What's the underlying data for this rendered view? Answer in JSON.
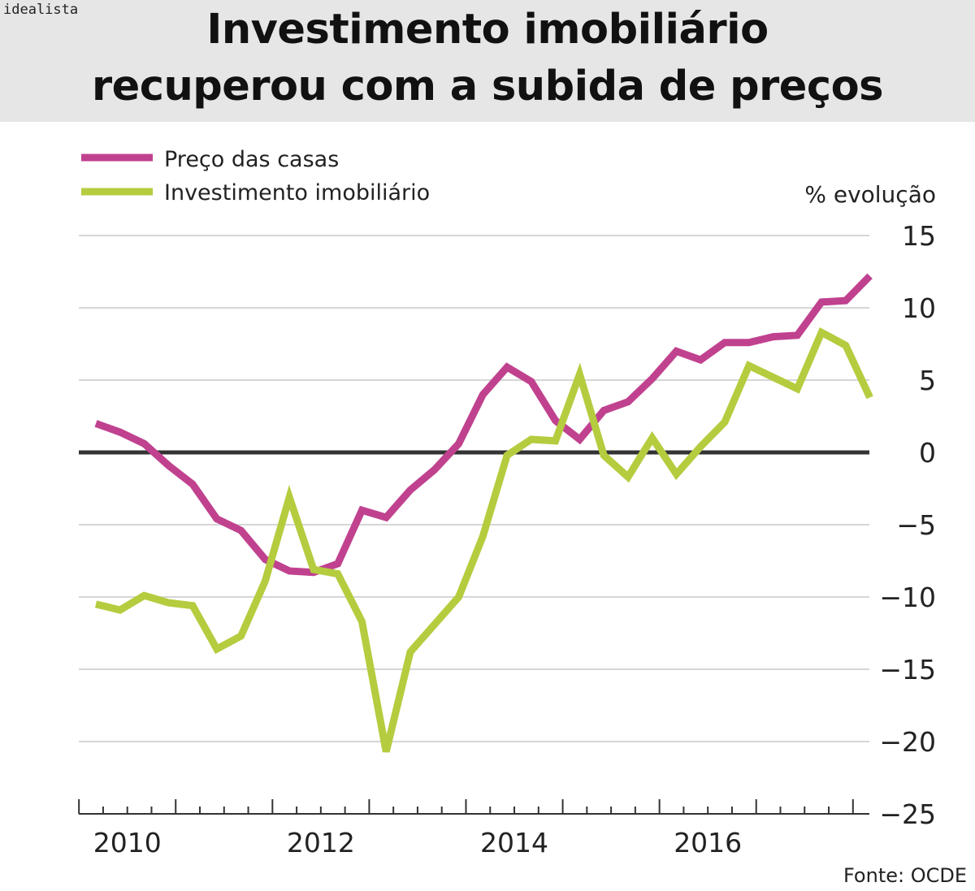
{
  "brand": "idealista",
  "header": {
    "title_line1": "Investimento imobiliário",
    "title_line2": "recuperou com a subida de preços"
  },
  "source": "Fonte: OCDE",
  "colors": {
    "series_1": "#c0428f",
    "series_2": "#b5cc3f",
    "zero_line": "#333333",
    "grid": "#d6d6d6",
    "header_bg": "#e6e6e6"
  },
  "chart_data": {
    "type": "line",
    "title": "Investimento imobiliário recuperou com a subida de preços",
    "ylabel": "% evolução",
    "xlabel": "",
    "ylim": [
      -25,
      15
    ],
    "yticks": [
      15,
      10,
      5,
      0,
      -5,
      -10,
      -15,
      -20,
      -25
    ],
    "ytick_labels": [
      "15",
      "10",
      "5",
      "0",
      "−5",
      "−10",
      "−15",
      "−20",
      "−25"
    ],
    "xtick_labels": [
      "2010",
      "2012",
      "2014",
      "2016"
    ],
    "x_years_range": [
      2010,
      2018
    ],
    "grid": true,
    "legend_position": "top-left",
    "x": [
      "2010Q1",
      "2010Q2",
      "2010Q3",
      "2010Q4",
      "2011Q1",
      "2011Q2",
      "2011Q3",
      "2011Q4",
      "2012Q1",
      "2012Q2",
      "2012Q3",
      "2012Q4",
      "2013Q1",
      "2013Q2",
      "2013Q3",
      "2013Q4",
      "2014Q1",
      "2014Q2",
      "2014Q3",
      "2014Q4",
      "2015Q1",
      "2015Q2",
      "2015Q3",
      "2015Q4",
      "2016Q1",
      "2016Q2",
      "2016Q3",
      "2016Q4",
      "2017Q1",
      "2017Q2",
      "2017Q3",
      "2017Q4",
      "2018Q1"
    ],
    "series": [
      {
        "name": "Preço das casas",
        "color": "#c0428f",
        "values": [
          2.0,
          1.4,
          0.6,
          -0.9,
          -2.2,
          -4.6,
          -5.4,
          -7.4,
          -8.2,
          -8.3,
          -7.7,
          -4.0,
          -4.5,
          -2.6,
          -1.2,
          0.6,
          4.0,
          5.9,
          4.9,
          2.2,
          0.9,
          2.9,
          3.5,
          5.1,
          7.0,
          6.4,
          7.6,
          7.6,
          8.0,
          8.1,
          10.4,
          10.5,
          12.2
        ]
      },
      {
        "name": "Investimento imobiliário",
        "color": "#b5cc3f",
        "values": [
          -10.5,
          -10.9,
          -9.9,
          -10.4,
          -10.6,
          -13.6,
          -12.7,
          -8.9,
          -3.1,
          -8.1,
          -8.4,
          -11.7,
          -20.7,
          -13.8,
          -11.9,
          -10.0,
          -5.8,
          -0.2,
          0.9,
          0.8,
          5.4,
          -0.2,
          -1.7,
          1.0,
          -1.5,
          0.4,
          2.1,
          6.0,
          5.2,
          4.4,
          8.3,
          7.4,
          3.8
        ]
      }
    ]
  }
}
